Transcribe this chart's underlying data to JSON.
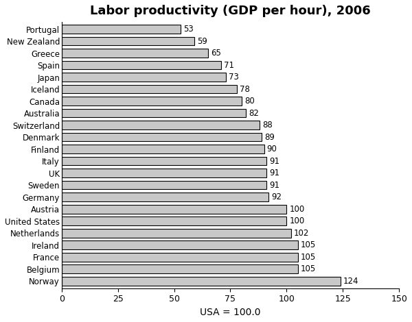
{
  "title": "Labor productivity (GDP per hour), 2006",
  "xlabel": "USA = 100.0",
  "countries": [
    "Norway",
    "Belgium",
    "France",
    "Ireland",
    "Netherlands",
    "United States",
    "Austria",
    "Germany",
    "Sweden",
    "UK",
    "Italy",
    "Finland",
    "Denmark",
    "Switzerland",
    "Australia",
    "Canada",
    "Iceland",
    "Japan",
    "Spain",
    "Greece",
    "New Zealand",
    "Portugal"
  ],
  "values": [
    124,
    105,
    105,
    105,
    102,
    100,
    100,
    92,
    91,
    91,
    91,
    90,
    89,
    88,
    82,
    80,
    78,
    73,
    71,
    65,
    59,
    53
  ],
  "bar_color": "#c8c8c8",
  "bar_edge_color": "#000000",
  "bar_edge_width": 0.8,
  "xlim": [
    0,
    150
  ],
  "xticks": [
    0,
    25,
    50,
    75,
    100,
    125,
    150
  ],
  "title_fontsize": 13,
  "label_fontsize": 8.5,
  "tick_fontsize": 9,
  "xlabel_fontsize": 10,
  "value_label_fontsize": 8.5,
  "background_color": "#ffffff"
}
